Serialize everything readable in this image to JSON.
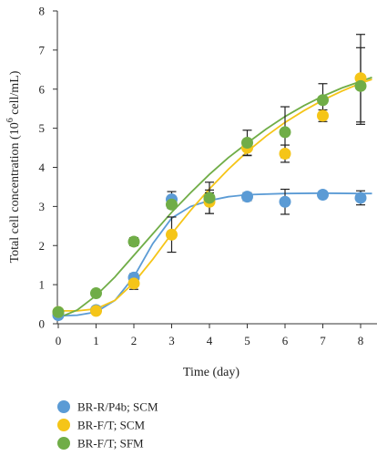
{
  "chart_data": {
    "type": "scatter",
    "title": "",
    "xlabel": "Time (day)",
    "ylabel_main": "Total cell concentration (10",
    "ylabel_exp": "6",
    "ylabel_unit": " cell/mL)",
    "xlim": [
      0,
      8.3
    ],
    "ylim": [
      0,
      8
    ],
    "xticks": [
      0,
      1,
      2,
      3,
      4,
      5,
      6,
      7,
      8
    ],
    "yticks": [
      0,
      1,
      2,
      3,
      4,
      5,
      6,
      7,
      8
    ],
    "legend_position": "bottom-left",
    "series": [
      {
        "name": "BR-R/P4b; SCM",
        "color": "#5b9bd5",
        "x": [
          0,
          1,
          2,
          3,
          4,
          5,
          6,
          7,
          8
        ],
        "y": [
          0.22,
          0.35,
          1.18,
          3.18,
          3.2,
          3.25,
          3.12,
          3.3,
          3.22
        ],
        "err": [
          0.05,
          0.05,
          0.1,
          0.2,
          0.15,
          0.1,
          0.32,
          0.08,
          0.18
        ],
        "fit": [
          [
            0,
            0.2
          ],
          [
            0.5,
            0.22
          ],
          [
            1,
            0.3
          ],
          [
            1.5,
            0.6
          ],
          [
            2,
            1.2
          ],
          [
            2.5,
            2.05
          ],
          [
            3,
            2.7
          ],
          [
            3.5,
            3.0
          ],
          [
            4,
            3.15
          ],
          [
            4.5,
            3.25
          ],
          [
            5,
            3.3
          ],
          [
            6,
            3.33
          ],
          [
            7,
            3.34
          ],
          [
            8,
            3.33
          ],
          [
            8.3,
            3.33
          ]
        ]
      },
      {
        "name": "BR-F/T; SCM",
        "color": "#f5c518",
        "x": [
          0,
          1,
          2,
          3,
          4,
          5,
          6,
          7,
          8
        ],
        "y": [
          0.3,
          0.33,
          1.03,
          2.28,
          3.12,
          4.5,
          4.35,
          5.32,
          6.28
        ],
        "err": [
          0.05,
          0.05,
          0.15,
          0.45,
          0.3,
          0.2,
          0.22,
          0.15,
          1.12
        ],
        "fit": [
          [
            0,
            0.33
          ],
          [
            0.5,
            0.33
          ],
          [
            1,
            0.38
          ],
          [
            1.5,
            0.6
          ],
          [
            2,
            1.05
          ],
          [
            2.5,
            1.65
          ],
          [
            3,
            2.3
          ],
          [
            3.5,
            2.9
          ],
          [
            4,
            3.45
          ],
          [
            4.5,
            3.95
          ],
          [
            5,
            4.4
          ],
          [
            5.5,
            4.8
          ],
          [
            6,
            5.15
          ],
          [
            6.5,
            5.45
          ],
          [
            7,
            5.72
          ],
          [
            7.5,
            5.95
          ],
          [
            8,
            6.15
          ],
          [
            8.3,
            6.25
          ]
        ]
      },
      {
        "name": "BR-F/T; SFM",
        "color": "#70ad47",
        "x": [
          0,
          1,
          2,
          3,
          4,
          5,
          6,
          7,
          8
        ],
        "y": [
          0.3,
          0.78,
          2.1,
          3.05,
          3.22,
          4.63,
          4.9,
          5.72,
          6.08
        ],
        "err": [
          0.05,
          0.05,
          0.1,
          0.1,
          0.4,
          0.32,
          0.65,
          0.42,
          0.98
        ],
        "fit": [
          [
            0,
            0.15
          ],
          [
            0.5,
            0.35
          ],
          [
            1,
            0.72
          ],
          [
            1.5,
            1.2
          ],
          [
            2,
            1.75
          ],
          [
            2.5,
            2.3
          ],
          [
            3,
            2.85
          ],
          [
            3.5,
            3.35
          ],
          [
            4,
            3.82
          ],
          [
            4.5,
            4.25
          ],
          [
            5,
            4.62
          ],
          [
            5.5,
            4.98
          ],
          [
            6,
            5.3
          ],
          [
            6.5,
            5.58
          ],
          [
            7,
            5.82
          ],
          [
            7.5,
            6.03
          ],
          [
            8,
            6.2
          ],
          [
            8.3,
            6.3
          ]
        ]
      }
    ]
  }
}
